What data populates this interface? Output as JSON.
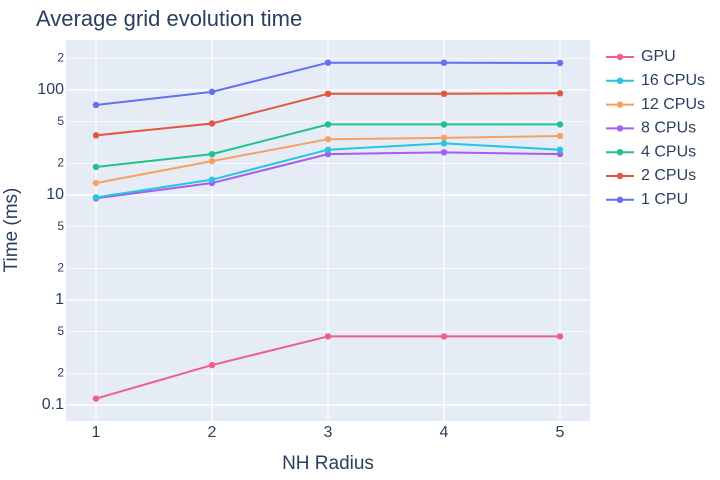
{
  "chart_data": {
    "type": "line",
    "title": "Average grid evolution time",
    "xlabel": "NH Radius",
    "ylabel": "Time (ms)",
    "y_scale": "log",
    "ylim": [
      0.07,
      250
    ],
    "xlim": [
      0.7,
      5.25
    ],
    "grid": true,
    "legend_position": "right",
    "x": [
      1,
      2,
      3,
      4,
      5
    ],
    "x_ticks": [
      "1",
      "2",
      "3",
      "4",
      "5"
    ],
    "y_major_ticks": [
      {
        "value": 0.1,
        "label": "0.1"
      },
      {
        "value": 1,
        "label": "1"
      },
      {
        "value": 10,
        "label": "10"
      },
      {
        "value": 100,
        "label": "100"
      }
    ],
    "y_minor_ticks": [
      {
        "value": 0.2,
        "label": "2"
      },
      {
        "value": 0.5,
        "label": "5"
      },
      {
        "value": 2,
        "label": "2"
      },
      {
        "value": 5,
        "label": "5"
      },
      {
        "value": 20,
        "label": "2"
      },
      {
        "value": 50,
        "label": "5"
      },
      {
        "value": 200,
        "label": "2"
      }
    ],
    "series": [
      {
        "name": "GPU",
        "color": "#ef5f8a",
        "values": [
          0.115,
          0.24,
          0.45,
          0.45,
          0.45
        ]
      },
      {
        "name": "16 CPUs",
        "color": "#27c6e0",
        "values": [
          9.5,
          14,
          27,
          31,
          27
        ]
      },
      {
        "name": "12 CPUs",
        "color": "#f8a15e",
        "values": [
          13,
          21,
          34,
          35,
          36.5
        ]
      },
      {
        "name": "8 CPUs",
        "color": "#a65df2",
        "values": [
          9.3,
          13,
          24.5,
          25.5,
          24.5
        ]
      },
      {
        "name": "4 CPUs",
        "color": "#1ec28f",
        "values": [
          18.5,
          24.5,
          47,
          47,
          47
        ]
      },
      {
        "name": "2 CPUs",
        "color": "#e4553e",
        "values": [
          37,
          48,
          92,
          92,
          93
        ]
      },
      {
        "name": "1 CPU",
        "color": "#6470f2",
        "values": [
          72,
          96,
          182,
          182,
          181
        ]
      }
    ]
  }
}
